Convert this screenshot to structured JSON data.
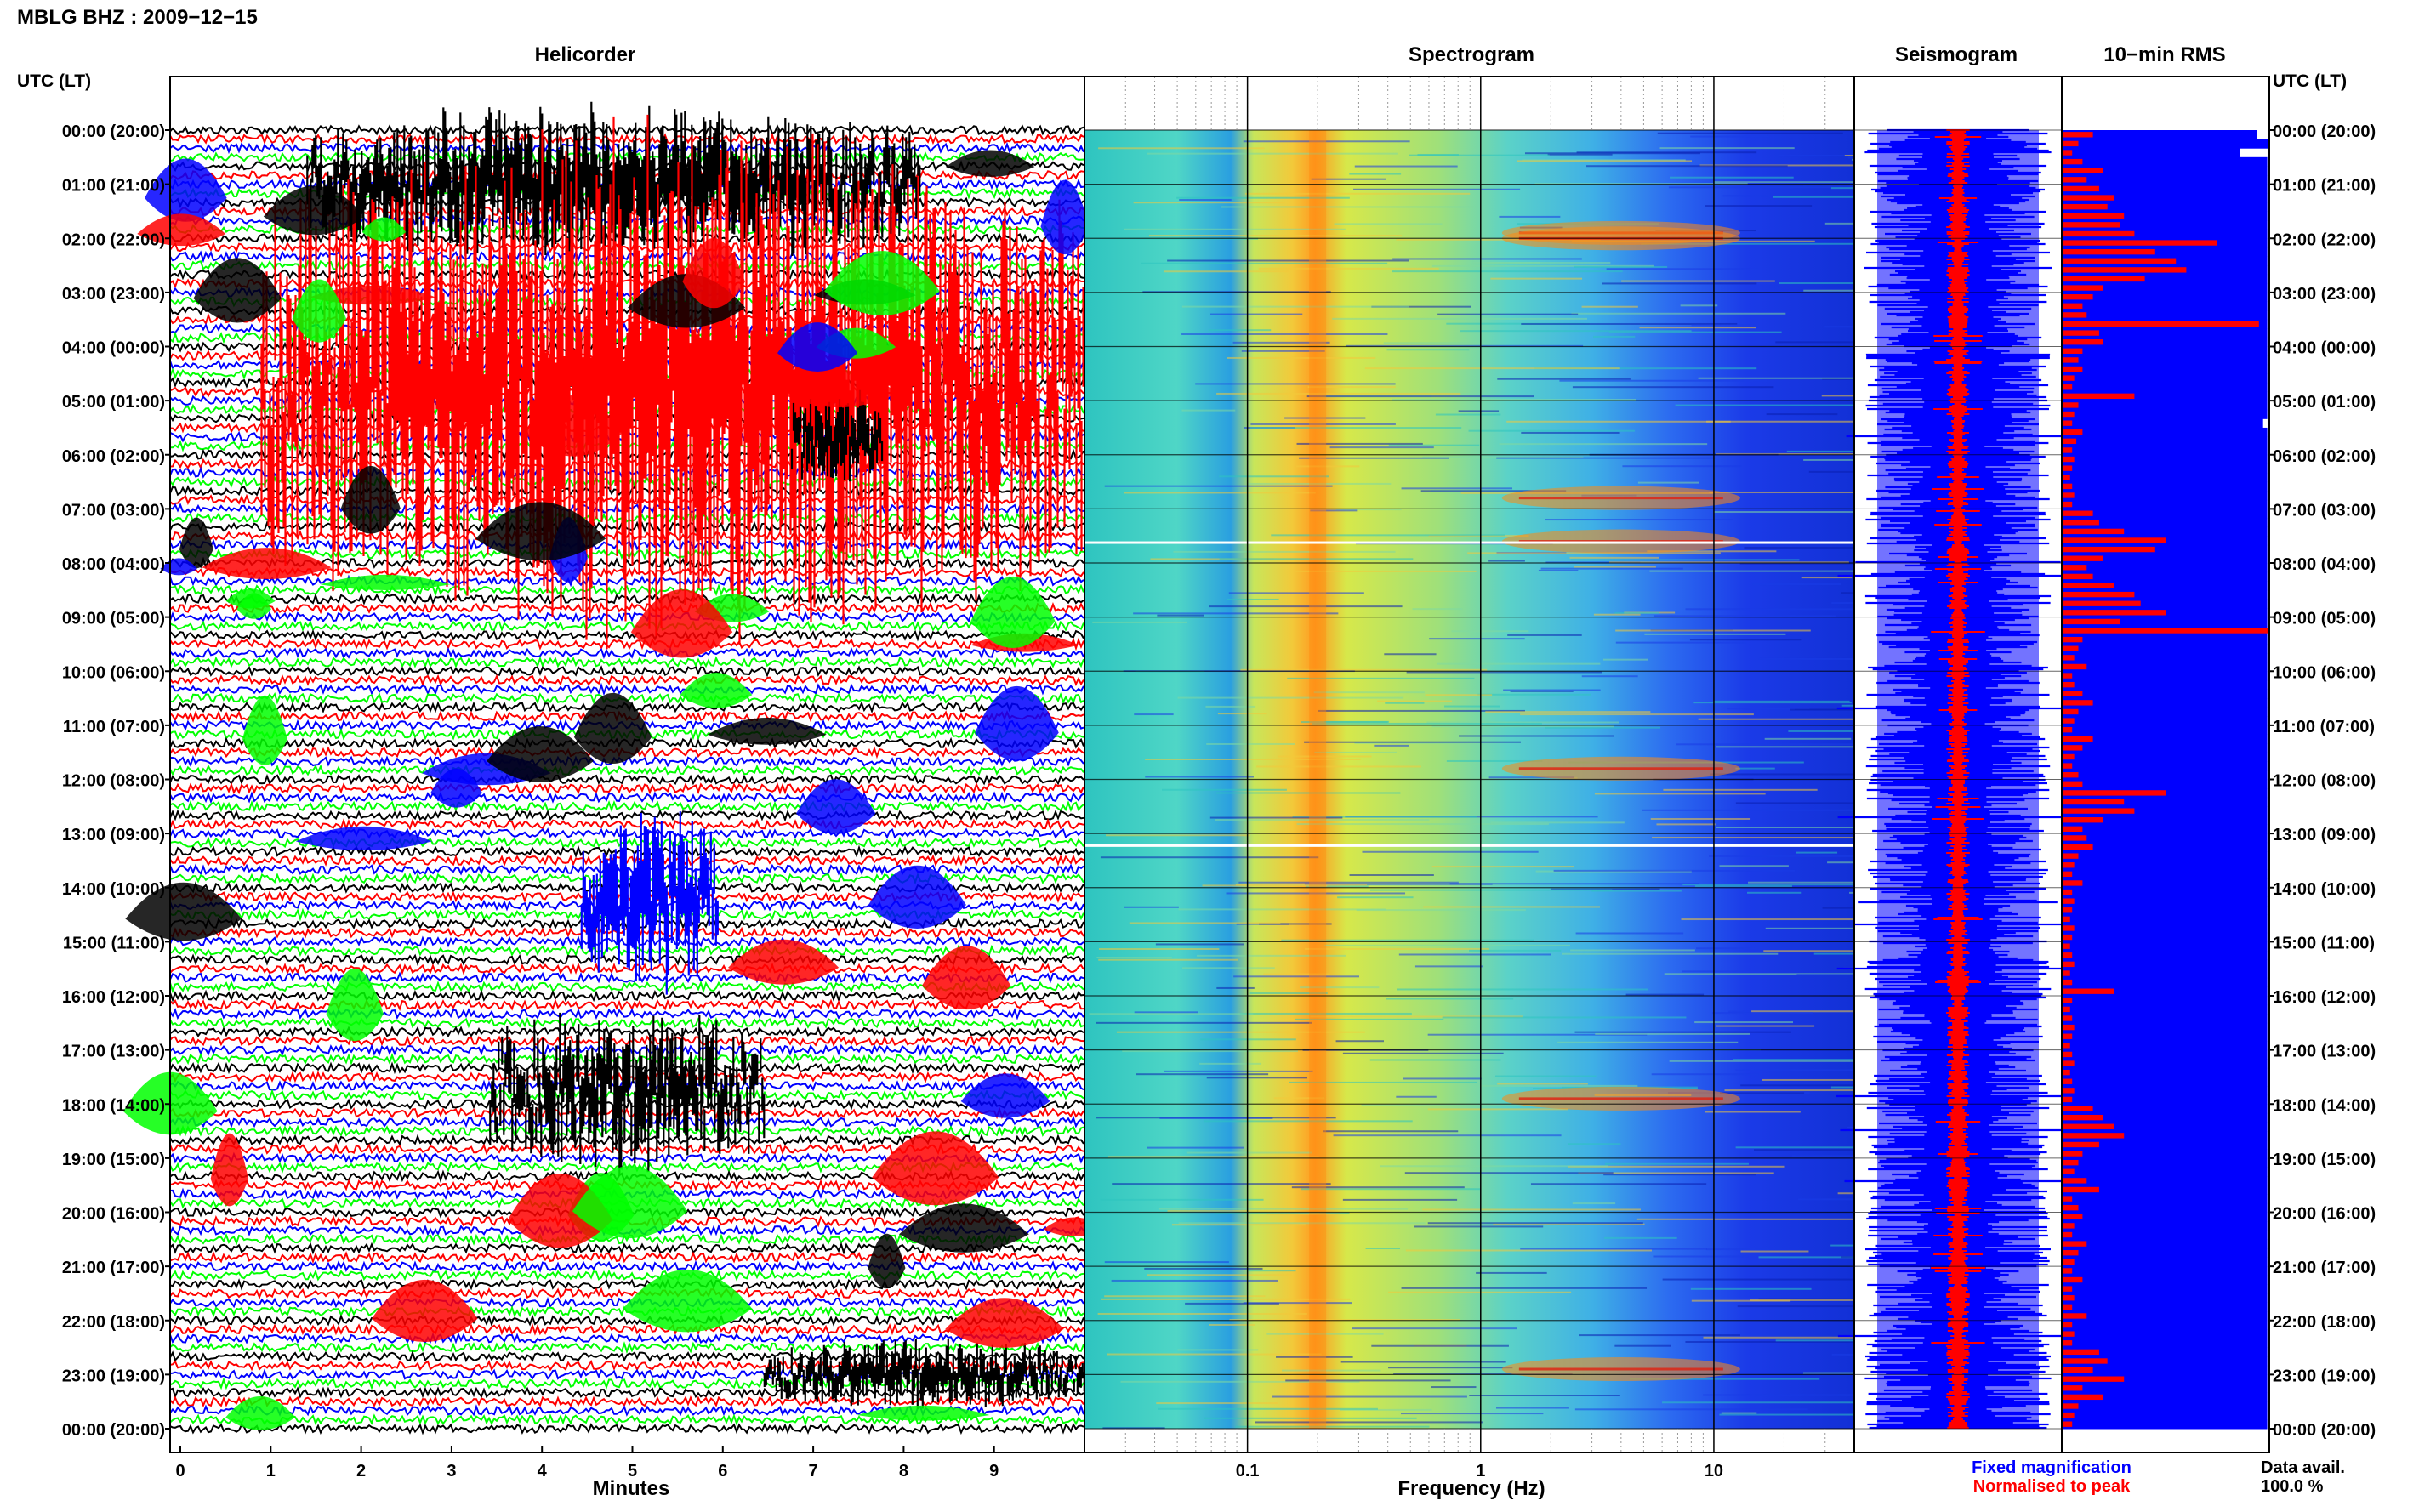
{
  "header": {
    "station_date": "MBLG BHZ : 2009−12−15"
  },
  "time_axis": {
    "title": "UTC (LT)",
    "labels": [
      "00:00 (20:00)",
      "01:00 (21:00)",
      "02:00 (22:00)",
      "03:00 (23:00)",
      "04:00 (00:00)",
      "05:00 (01:00)",
      "06:00 (02:00)",
      "07:00 (03:00)",
      "08:00 (04:00)",
      "09:00 (05:00)",
      "10:00 (06:00)",
      "11:00 (07:00)",
      "12:00 (08:00)",
      "13:00 (09:00)",
      "14:00 (10:00)",
      "15:00 (11:00)",
      "16:00 (12:00)",
      "17:00 (13:00)",
      "18:00 (14:00)",
      "19:00 (15:00)",
      "20:00 (16:00)",
      "21:00 (17:00)",
      "22:00 (18:00)",
      "23:00 (19:00)",
      "00:00 (20:00)"
    ]
  },
  "colors": {
    "trace_black": "#000000",
    "trace_red": "#ff0000",
    "trace_green": "#00ff00",
    "trace_blue": "#0000ff",
    "rms_fill": "#0000ff",
    "rms_peak": "#ff0000"
  },
  "chart_data": [
    {
      "type": "line",
      "title": "Helicorder",
      "xlabel": "Minutes",
      "x_ticks": [
        "0",
        "1",
        "2",
        "3",
        "4",
        "5",
        "6",
        "7",
        "8",
        "9"
      ],
      "xlim": [
        0,
        10
      ],
      "rows_per_hour": 6,
      "series_colors": [
        "black",
        "red",
        "blue",
        "green"
      ],
      "activity_regions_hours": [
        {
          "start_h": 0.0,
          "end_h": 2.0,
          "start_min": 1.5,
          "end_min": 8.2,
          "color": "black",
          "strength": 1.0
        },
        {
          "start_h": 1.5,
          "end_h": 8.0,
          "start_min": 1.0,
          "end_min": 10.0,
          "color": "red",
          "strength": 1.0
        },
        {
          "start_h": 5.0,
          "end_h": 6.5,
          "start_min": 6.8,
          "end_min": 7.8,
          "color": "black",
          "strength": 0.8
        },
        {
          "start_h": 13.0,
          "end_h": 15.5,
          "start_min": 4.5,
          "end_min": 6.0,
          "color": "blue",
          "strength": 0.9
        },
        {
          "start_h": 16.5,
          "end_h": 19.0,
          "start_min": 3.5,
          "end_min": 6.5,
          "color": "black",
          "strength": 0.7
        },
        {
          "start_h": 22.5,
          "end_h": 23.5,
          "start_min": 6.5,
          "end_min": 10.0,
          "color": "black",
          "strength": 0.8
        }
      ]
    },
    {
      "type": "heatmap",
      "title": "Spectrogram",
      "xlabel": "Frequency (Hz)",
      "x_scale": "log",
      "xlim": [
        0.02,
        40
      ],
      "x_ticks": [
        "0.1",
        "1",
        "10"
      ],
      "x_tick_values": [
        0.1,
        1,
        10
      ],
      "colormap": "jet",
      "microseism_peak_hz": 0.2,
      "strong_band_hours": [
        1.9,
        2.0,
        6.8,
        7.6,
        11.8,
        17.9,
        22.9
      ],
      "strong_band_center_hz": 4.0
    },
    {
      "type": "line",
      "title": "Seismogram",
      "legend": [
        {
          "label": "Fixed magnification",
          "color": "blue"
        },
        {
          "label": "Normalised to peak",
          "color": "red"
        }
      ]
    },
    {
      "type": "bar",
      "title": "10−min RMS",
      "data_available_label": "Data avail.",
      "data_available_value": "100.0 %",
      "fixed_magnification_bars": [
        0.94,
        1.0,
        0.86,
        0.99,
        0.99,
        0.99,
        0.99,
        0.99,
        0.99,
        0.99,
        0.99,
        0.99,
        0.99,
        0.99,
        0.99,
        0.99,
        0.99,
        0.99,
        0.99,
        0.99,
        0.99,
        0.99,
        0.99,
        0.99,
        0.99,
        0.99,
        0.99,
        0.99,
        0.99,
        0.99,
        0.99,
        0.99,
        0.97,
        0.99,
        0.99,
        0.99,
        0.99,
        0.99,
        0.99,
        0.99,
        0.99,
        0.99,
        0.99,
        0.99,
        0.99,
        0.99,
        0.99,
        0.99,
        0.99,
        0.99,
        0.99,
        0.99,
        0.99,
        0.99,
        0.99,
        0.99,
        0.99,
        0.99,
        0.99,
        0.99,
        0.99,
        0.99,
        0.99,
        0.99,
        0.99,
        0.99,
        0.99,
        0.99,
        0.99,
        0.99,
        0.99,
        0.99,
        0.99,
        0.99,
        0.99,
        0.99,
        0.99,
        0.99,
        0.99,
        0.99,
        0.99,
        0.99,
        0.99,
        0.99,
        0.99,
        0.99,
        0.99,
        0.99,
        0.99,
        0.99,
        0.99,
        0.99,
        0.99,
        0.99,
        0.99,
        0.99,
        0.99,
        0.99,
        0.99,
        0.99,
        0.99,
        0.99,
        0.99,
        0.99,
        0.99,
        0.99,
        0.99,
        0.99,
        0.99,
        0.99,
        0.99,
        0.99,
        0.99,
        0.99,
        0.99,
        0.99,
        0.99,
        0.99,
        0.99,
        0.99,
        0.99,
        0.99,
        0.99,
        0.99,
        0.99,
        0.99,
        0.99,
        0.99,
        0.99,
        0.99,
        0.99,
        0.99,
        0.99,
        0.99,
        0.99,
        0.99,
        0.99,
        0.99,
        0.99,
        0.99,
        0.99,
        0.99,
        0.99,
        0.99
      ],
      "normalised_bars": [
        0.15,
        0.08,
        0.05,
        0.1,
        0.2,
        0.12,
        0.18,
        0.25,
        0.22,
        0.3,
        0.28,
        0.35,
        0.75,
        0.45,
        0.55,
        0.6,
        0.4,
        0.2,
        0.15,
        0.1,
        0.12,
        0.95,
        0.18,
        0.2,
        0.1,
        0.08,
        0.1,
        0.06,
        0.05,
        0.35,
        0.08,
        0.06,
        0.05,
        0.1,
        0.07,
        0.05,
        0.06,
        0.05,
        0.04,
        0.05,
        0.06,
        0.05,
        0.15,
        0.18,
        0.3,
        0.5,
        0.45,
        0.2,
        0.12,
        0.15,
        0.25,
        0.35,
        0.38,
        0.5,
        0.28,
        1.0,
        0.1,
        0.08,
        0.06,
        0.12,
        0.05,
        0.06,
        0.1,
        0.15,
        0.08,
        0.06,
        0.05,
        0.15,
        0.1,
        0.06,
        0.05,
        0.08,
        0.1,
        0.5,
        0.3,
        0.35,
        0.2,
        0.1,
        0.12,
        0.15,
        0.08,
        0.06,
        0.05,
        0.1,
        0.05,
        0.06,
        0.05,
        0.04,
        0.06,
        0.05,
        0.04,
        0.05,
        0.06,
        0.04,
        0.05,
        0.25,
        0.05,
        0.04,
        0.05,
        0.06,
        0.05,
        0.04,
        0.05,
        0.06,
        0.04,
        0.05,
        0.06,
        0.05,
        0.15,
        0.2,
        0.25,
        0.3,
        0.18,
        0.1,
        0.08,
        0.06,
        0.12,
        0.18,
        0.05,
        0.08,
        0.1,
        0.06,
        0.05,
        0.12,
        0.08,
        0.06,
        0.05,
        0.1,
        0.05,
        0.06,
        0.05,
        0.12,
        0.05,
        0.06,
        0.05,
        0.18,
        0.22,
        0.15,
        0.3,
        0.1,
        0.2,
        0.08,
        0.06,
        0.05
      ]
    }
  ]
}
